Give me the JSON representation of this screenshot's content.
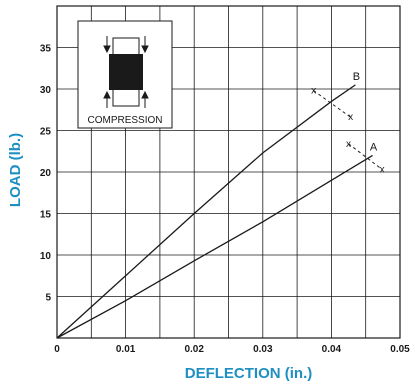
{
  "chart_data": {
    "type": "line",
    "xlabel": "DEFLECTION (in.)",
    "ylabel": "LOAD (lb.)",
    "xlim": [
      0,
      0.05
    ],
    "ylim": [
      0,
      40
    ],
    "x_ticks": [
      {
        "value": 0,
        "label": "0"
      },
      {
        "value": 0.01,
        "label": "0.01"
      },
      {
        "value": 0.02,
        "label": "0.02"
      },
      {
        "value": 0.03,
        "label": "0.03"
      },
      {
        "value": 0.04,
        "label": "0.04"
      },
      {
        "value": 0.05,
        "label": "0.05"
      }
    ],
    "y_ticks": [
      {
        "value": 5,
        "label": "5"
      },
      {
        "value": 10,
        "label": "10"
      },
      {
        "value": 15,
        "label": "15"
      },
      {
        "value": 20,
        "label": "20"
      },
      {
        "value": 25,
        "label": "25"
      },
      {
        "value": 30,
        "label": "30"
      },
      {
        "value": 35,
        "label": "35"
      }
    ],
    "x_grid_step": 0.005,
    "y_grid_step": 5,
    "grid": true,
    "series": [
      {
        "name": "A",
        "x": [
          0,
          0.01,
          0.02,
          0.03,
          0.04,
          0.046
        ],
        "y": [
          0,
          4.5,
          9.3,
          14.0,
          19.0,
          22.0
        ]
      },
      {
        "name": "B",
        "x": [
          0,
          0.01,
          0.02,
          0.03,
          0.04,
          0.0435
        ],
        "y": [
          0,
          7.5,
          15.0,
          22.3,
          28.5,
          30.5
        ]
      }
    ],
    "markers": [
      {
        "text": "x",
        "x": 0.0374,
        "y": 29.8
      },
      {
        "text": "x",
        "x": 0.0428,
        "y": 26.6
      },
      {
        "text": "x",
        "x": 0.0425,
        "y": 23.4
      },
      {
        "text": "x",
        "x": 0.0474,
        "y": 20.3
      }
    ],
    "inset": {
      "label": "COMPRESSION"
    },
    "colors": {
      "axis_title": "#1e8fc2",
      "line": "#1a1a1a",
      "grid": "#1a1a1a"
    }
  }
}
